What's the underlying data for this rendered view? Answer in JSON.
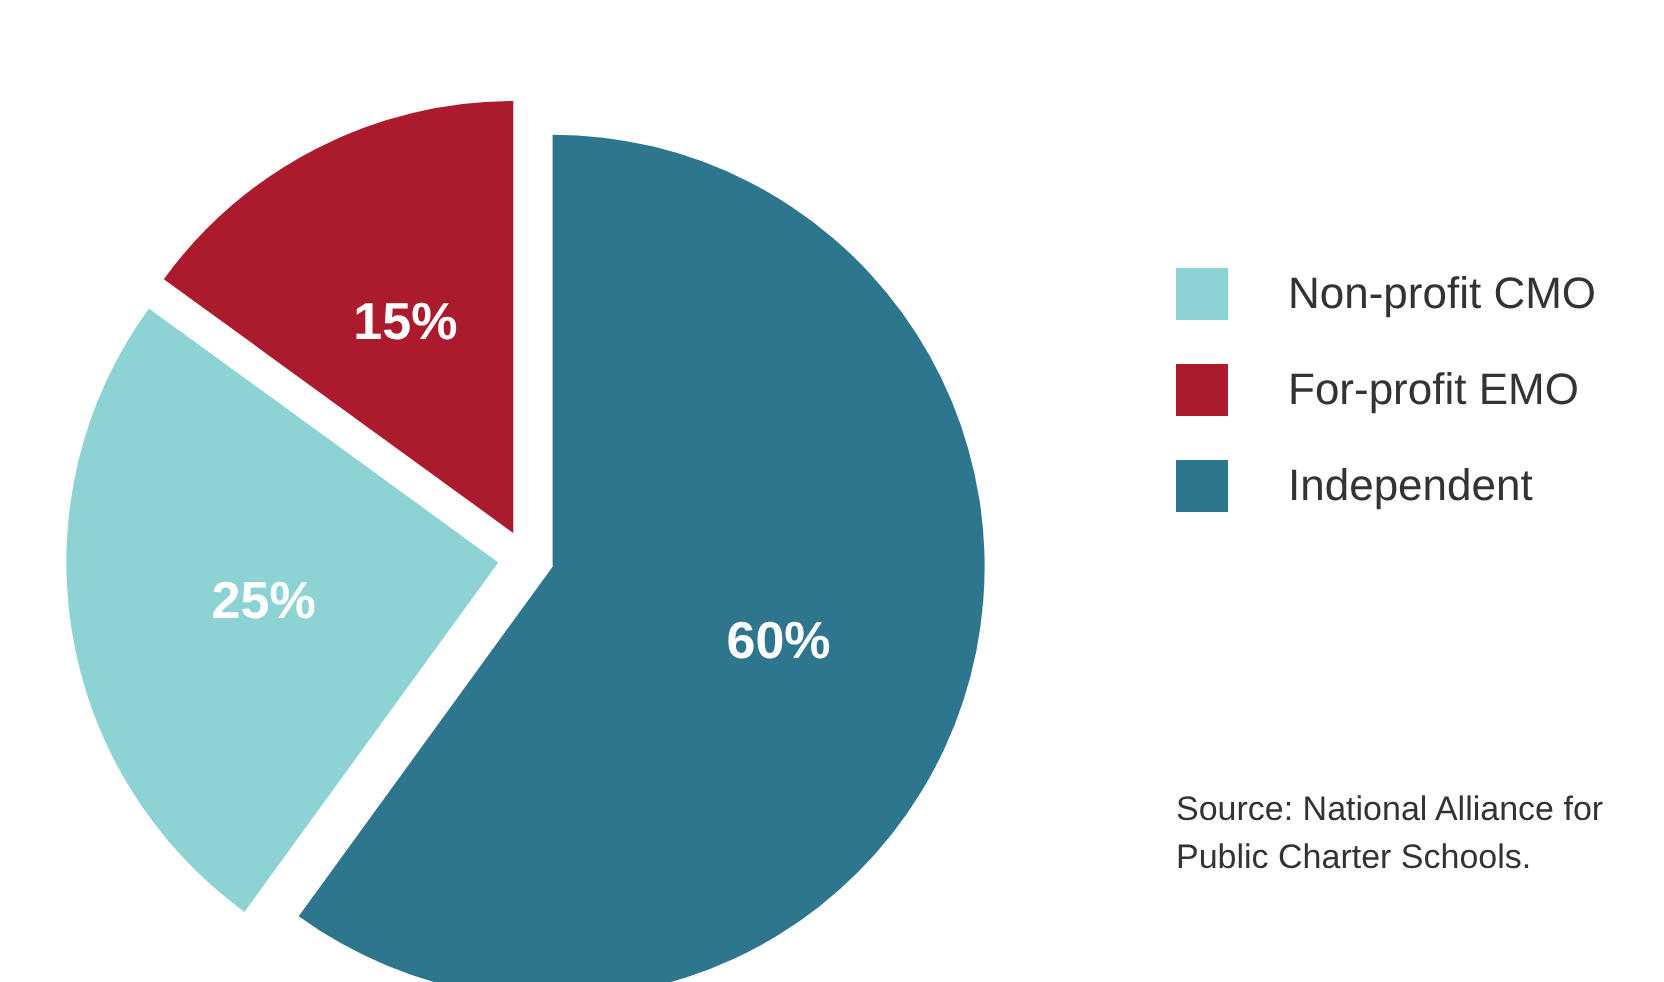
{
  "chart_data": {
    "type": "pie",
    "categories": [
      "Non-profit CMO",
      "For-profit EMO",
      "Independent"
    ],
    "values": [
      25,
      15,
      60
    ],
    "colors": [
      "#8ed3d3",
      "#ab1a2d",
      "#2e758e"
    ],
    "value_labels": [
      "25%",
      "15%",
      "60%"
    ],
    "legend": "right",
    "annotations": [
      "Source: National Alliance for Public Charter Schools."
    ]
  }
}
